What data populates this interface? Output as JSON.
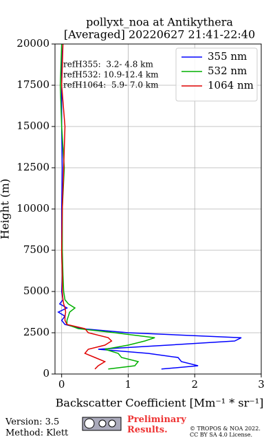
{
  "chart_data": {
    "type": "profile",
    "title": "pollyxt_noa at Antikythera",
    "subtitle": "[Averaged] 20220627 21:41-22:40",
    "x_label": "Backscatter Coefficient [Mm⁻¹ * sr⁻¹]",
    "y_label": "Height (m)",
    "annotations": [
      "refH355:  3.2- 4.8 km",
      "refH532: 10.9-12.4 km",
      "refH1064:  5.9- 7.0 km"
    ],
    "heights": [
      300,
      500,
      750,
      1000,
      1250,
      1500,
      1750,
      2000,
      2200,
      2500,
      2750,
      3000,
      3250,
      3500,
      3750,
      4000,
      4250,
      4500,
      5000,
      6000,
      7500,
      10000,
      12500,
      15000,
      17500,
      20000
    ],
    "series": [
      {
        "name": "355 nm",
        "color": "#0000ff",
        "values": [
          1.5,
          2.05,
          1.8,
          1.75,
          1.3,
          0.55,
          1.6,
          2.6,
          2.7,
          1.0,
          0.3,
          0.05,
          0.0,
          0.05,
          -0.05,
          0.08,
          -0.03,
          0.02,
          0.0,
          0.01,
          0.0,
          0.0,
          0.01,
          0.0,
          0.0,
          0.0
        ]
      },
      {
        "name": "532 nm",
        "color": "#00b000",
        "values": [
          0.7,
          1.1,
          1.15,
          0.9,
          0.85,
          0.65,
          1.0,
          1.25,
          1.4,
          0.8,
          0.25,
          0.08,
          0.08,
          0.1,
          0.12,
          0.2,
          0.1,
          0.05,
          0.03,
          0.02,
          0.01,
          0.01,
          0.04,
          0.0,
          -0.02,
          0.0
        ]
      },
      {
        "name": "1064 nm",
        "color": "#e00000",
        "values": [
          0.5,
          0.55,
          0.65,
          0.5,
          0.35,
          0.4,
          0.65,
          0.75,
          0.7,
          0.4,
          0.35,
          0.08,
          0.05,
          0.05,
          0.06,
          0.05,
          0.03,
          0.02,
          0.01,
          0.01,
          0.0,
          0.01,
          0.03,
          0.05,
          0.0,
          0.02
        ]
      }
    ],
    "xlim": [
      -0.1,
      3
    ],
    "xticks": [
      0,
      1,
      2,
      3
    ],
    "ylim": [
      0,
      20000
    ],
    "yticks": [
      0,
      2500,
      5000,
      7500,
      10000,
      12500,
      15000,
      17500,
      20000
    ],
    "grid": true,
    "legend": "upper right"
  },
  "footer": {
    "version": "Version: 3.5",
    "method": "Method: Klett",
    "preliminary": "Preliminary Results.",
    "copyright": "© TROPOS & NOA 2022.",
    "license": "CC BY SA 4.0 License."
  }
}
